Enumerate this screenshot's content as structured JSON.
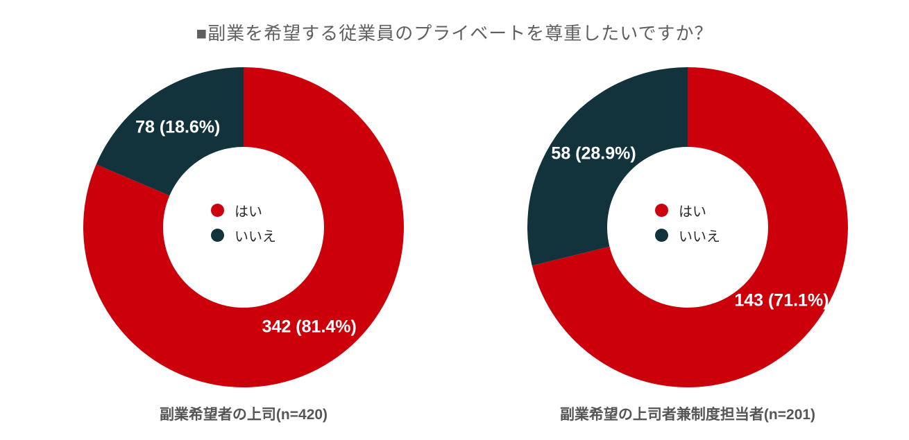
{
  "page": {
    "title": "■副業を希望する従業員のプライベートを尊重したいですか？",
    "background": "#ffffff"
  },
  "colors": {
    "yes_slice": "#cc000a",
    "no_slice": "#12333b",
    "title_text": "#5f5f5f",
    "caption_text": "#555555",
    "legend_text": "#2b2b2b",
    "data_label_text": "#ffffff"
  },
  "chart_data": [
    {
      "type": "pie",
      "subtype": "donut",
      "caption": "副業希望者の上司(n=420)",
      "n": 420,
      "start_angle_deg": 0,
      "direction": "clockwise",
      "legend_position": "center",
      "slices": [
        {
          "label": "はい",
          "value": 342,
          "percent": 81.4,
          "data_label": "342 (81.4%)",
          "color": "#cc000a"
        },
        {
          "label": "いいえ",
          "value": 78,
          "percent": 18.6,
          "data_label": "78 (18.6%)",
          "color": "#12333b"
        }
      ]
    },
    {
      "type": "pie",
      "subtype": "donut",
      "caption": "副業希望の上司者兼制度担当者(n=201)",
      "n": 201,
      "start_angle_deg": 0,
      "direction": "clockwise",
      "legend_position": "center",
      "slices": [
        {
          "label": "はい",
          "value": 143,
          "percent": 71.1,
          "data_label": "143 (71.1%)",
          "color": "#cc000a"
        },
        {
          "label": "いいえ",
          "value": 58,
          "percent": 28.9,
          "data_label": "58 (28.9%)",
          "color": "#12333b"
        }
      ]
    }
  ]
}
